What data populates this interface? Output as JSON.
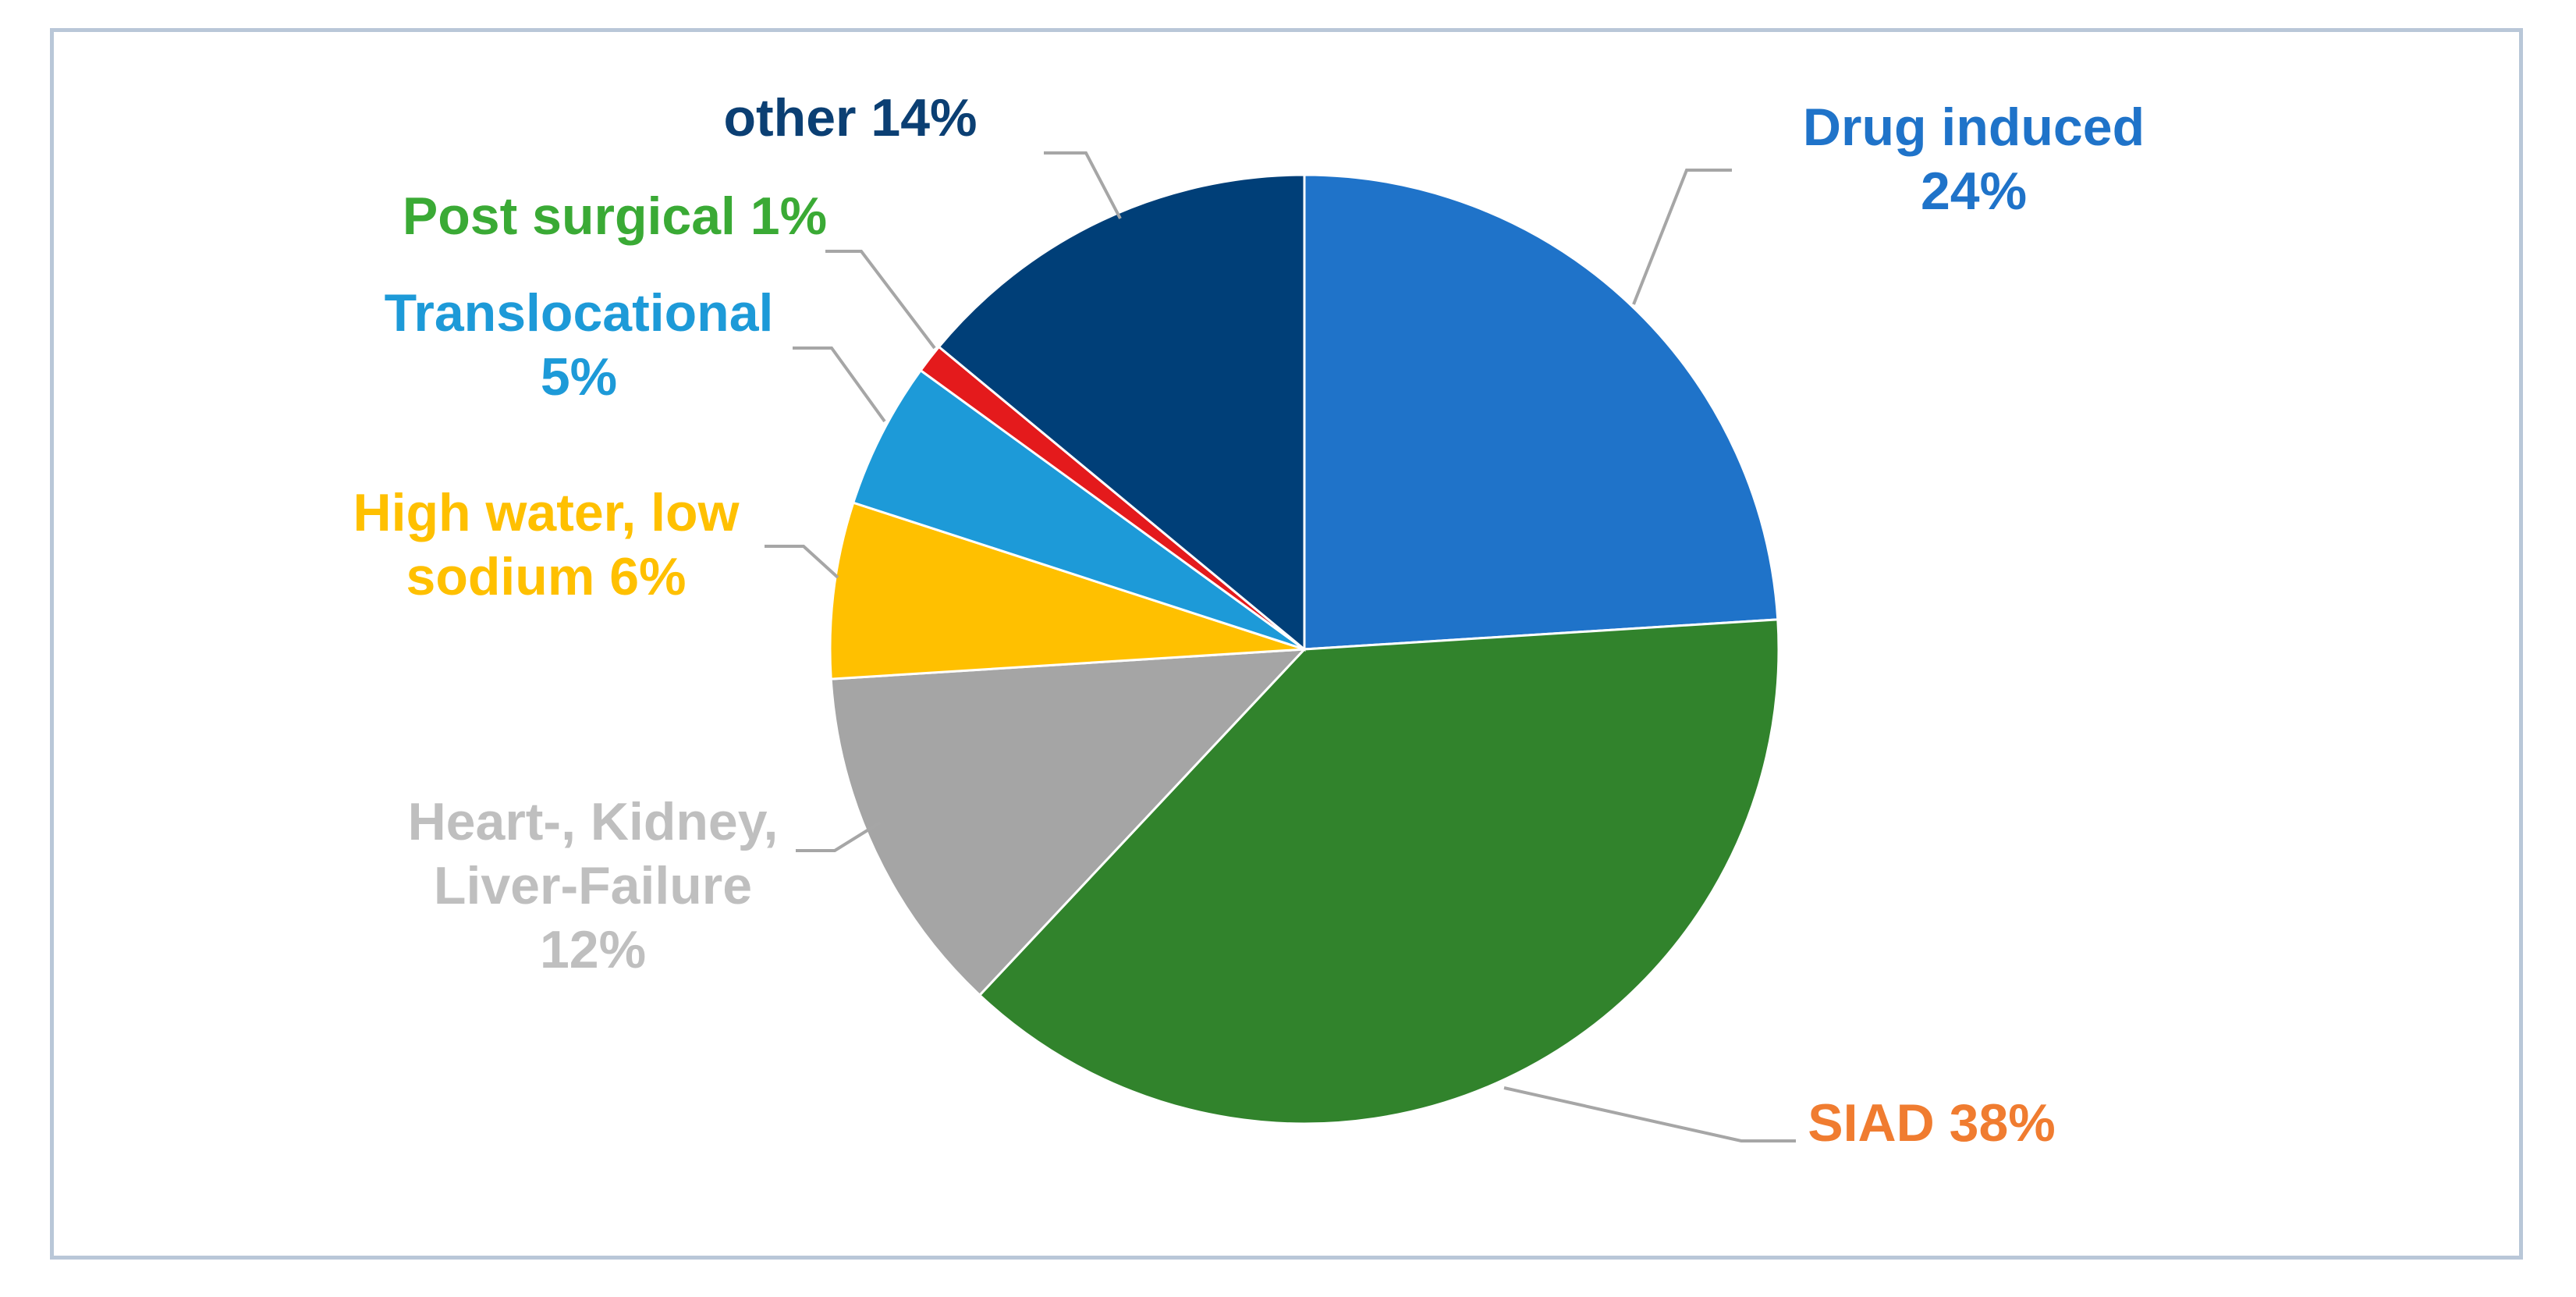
{
  "chart_data": {
    "type": "pie",
    "title": "",
    "start_angle_deg": 0,
    "direction": "clockwise",
    "slices": [
      {
        "name": "Drug induced",
        "value": 24,
        "color": "#1f73c9",
        "label_color": "#1f73c9",
        "label_lines": [
          "Drug induced",
          "24%"
        ]
      },
      {
        "name": "SIAD",
        "value": 38,
        "color": "#31832c",
        "label_color": "#f07c30",
        "label_lines": [
          "SIAD 38%"
        ]
      },
      {
        "name": "Heart-, Kidney, Liver-Failure",
        "value": 12,
        "color": "#a5a5a5",
        "label_color": "#bfbfbf",
        "label_lines": [
          "Heart-, Kidney,",
          "Liver-Failure",
          "12%"
        ]
      },
      {
        "name": "High water, low sodium",
        "value": 6,
        "color": "#ffc000",
        "label_color": "#ffc000",
        "label_lines": [
          "High water, low",
          "sodium 6%"
        ]
      },
      {
        "name": "Translocational",
        "value": 5,
        "color": "#1d9ad8",
        "label_color": "#1d9ad8",
        "label_lines": [
          "Translocational",
          "5%"
        ]
      },
      {
        "name": "Post surgical",
        "value": 1,
        "color": "#e41a1c",
        "label_color": "#3aaa35",
        "label_lines": [
          "Post surgical 1%"
        ]
      },
      {
        "name": "other",
        "value": 14,
        "color": "#003f78",
        "label_color": "#0b3f73",
        "label_lines": [
          "other 14%"
        ]
      }
    ]
  }
}
